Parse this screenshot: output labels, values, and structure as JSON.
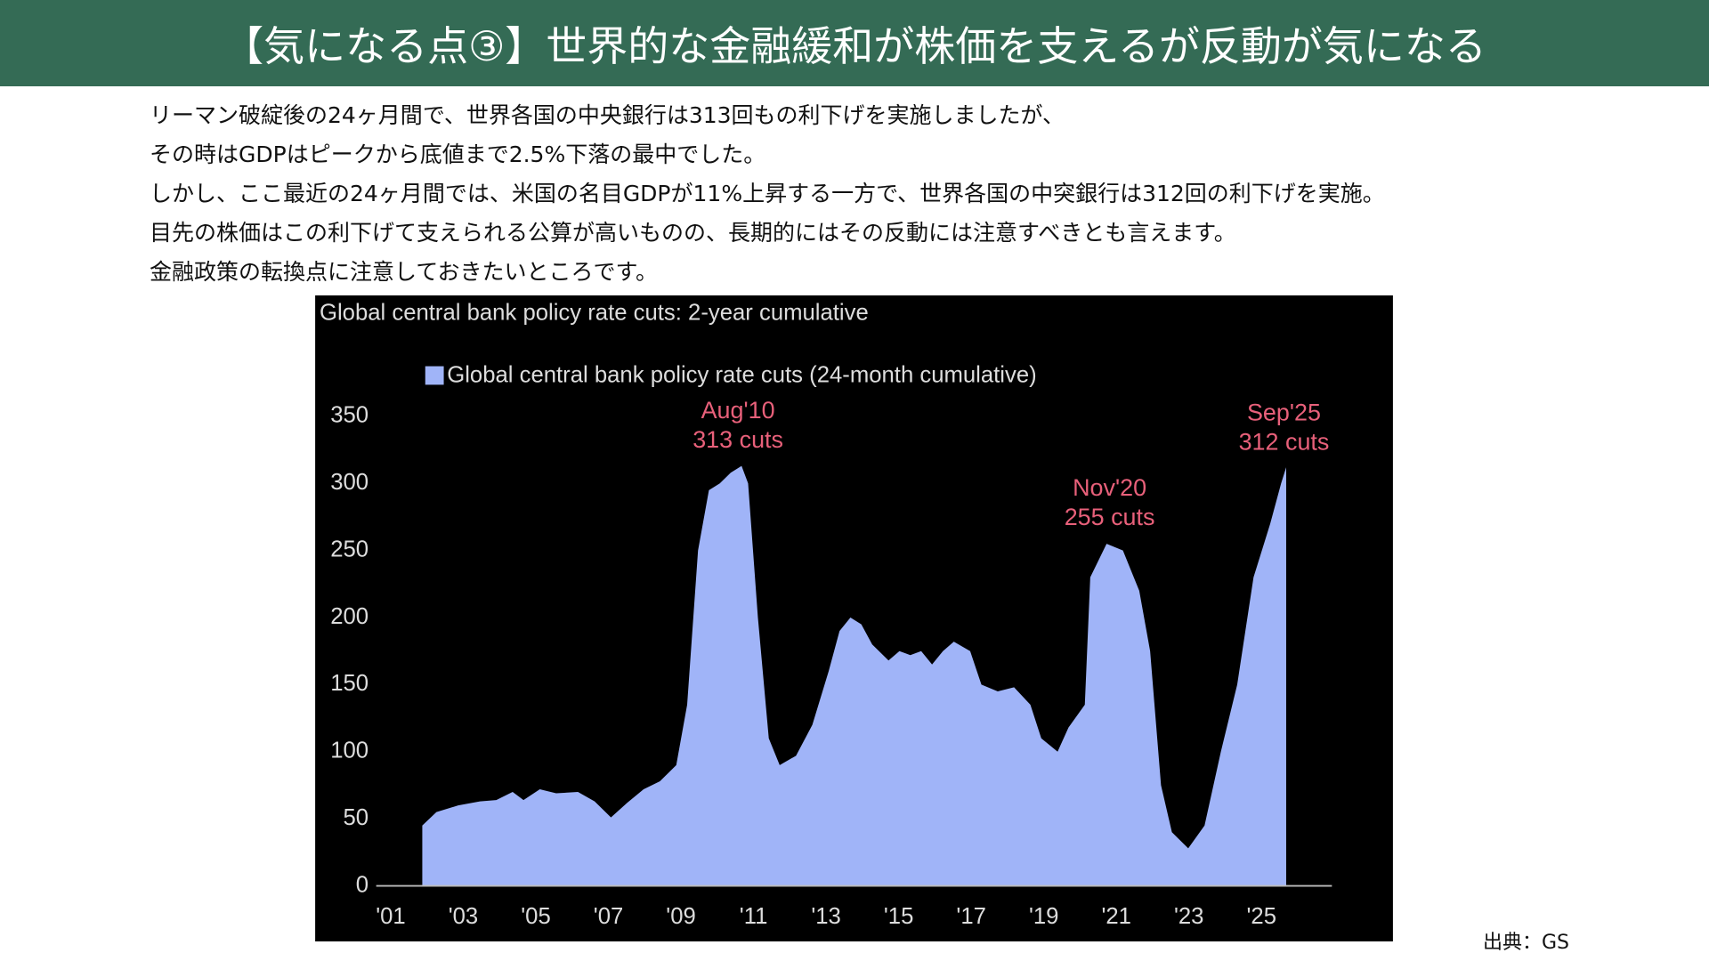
{
  "header": {
    "title": "【気になる点③】世界的な金融緩和が株価を支えるが反動が気になる"
  },
  "body": {
    "lines": [
      "リーマン破綻後の24ヶ月間で、世界各国の中央銀行は313回もの利下げを実施しましたが、",
      "その時はGDPはピークから底値まで2.5%下落の最中でした。",
      "しかし、ここ最近の24ヶ月間では、米国の名目GDPが11%上昇する一方で、世界各国の中突銀行は312回の利下げを実施。",
      "目先の株価はこの利下げて支えられる公算が高いものの、長期的にはその反動には注意すべきとも言えます。",
      "金融政策の転換点に注意しておきたいところです。"
    ]
  },
  "chart_data": {
    "type": "area",
    "title": "Global central bank policy rate cuts: 2-year cumulative",
    "x": [
      2001.87,
      2002.26,
      2002.86,
      2003.46,
      2003.91,
      2004.36,
      2004.66,
      2005.11,
      2005.56,
      2006.16,
      2006.62,
      2007.07,
      2007.52,
      2007.97,
      2008.42,
      2008.87,
      2009.17,
      2009.47,
      2009.77,
      2010.07,
      2010.37,
      2010.67,
      2010.85,
      2011.12,
      2011.42,
      2011.72,
      2012.17,
      2012.62,
      2013.07,
      2013.37,
      2013.67,
      2013.97,
      2014.27,
      2014.72,
      2015.02,
      2015.32,
      2015.62,
      2015.92,
      2016.22,
      2016.52,
      2016.97,
      2017.28,
      2017.73,
      2018.18,
      2018.63,
      2018.93,
      2019.38,
      2019.68,
      2020.13,
      2020.28,
      2020.73,
      2021.18,
      2021.63,
      2021.93,
      2022.23,
      2022.53,
      2022.98,
      2023.43,
      2023.88,
      2024.33,
      2024.78,
      2025.24,
      2025.54,
      2025.68
    ],
    "series": [
      {
        "name": "Global central bank policy rate cuts (24-month cumulative)",
        "color": "#a0b4f8",
        "values": [
          45,
          55,
          60,
          63,
          64,
          70,
          64,
          72,
          69,
          70,
          63,
          51,
          62,
          72,
          78,
          90,
          135,
          250,
          295,
          300,
          308,
          313,
          300,
          200,
          110,
          90,
          97,
          120,
          160,
          190,
          200,
          195,
          180,
          168,
          175,
          172,
          175,
          165,
          175,
          182,
          175,
          150,
          145,
          148,
          135,
          110,
          100,
          118,
          135,
          230,
          255,
          250,
          220,
          175,
          75,
          40,
          28,
          45,
          100,
          150,
          230,
          270,
          300,
          312
        ]
      }
    ],
    "xlim": [
      2000.6,
      2027
    ],
    "xticks": [
      {
        "value": 2001,
        "label": "'01"
      },
      {
        "value": 2003,
        "label": "'03"
      },
      {
        "value": 2005,
        "label": "'05"
      },
      {
        "value": 2007,
        "label": "'07"
      },
      {
        "value": 2009,
        "label": "'09"
      },
      {
        "value": 2011,
        "label": "'11"
      },
      {
        "value": 2013,
        "label": "'13"
      },
      {
        "value": 2015,
        "label": "'15"
      },
      {
        "value": 2017,
        "label": "'17"
      },
      {
        "value": 2019,
        "label": "'19"
      },
      {
        "value": 2021,
        "label": "'21"
      },
      {
        "value": 2023,
        "label": "'23"
      },
      {
        "value": 2025,
        "label": "'25"
      }
    ],
    "ylim": [
      0,
      350
    ],
    "yticks": [
      0,
      50,
      100,
      150,
      200,
      250,
      300,
      350
    ],
    "annotations": [
      [
        "Aug'10",
        "313 cuts"
      ],
      [
        "Nov'20",
        "255 cuts"
      ],
      [
        "Sep'25",
        "312 cuts"
      ]
    ],
    "annotation_color": "#e8607a"
  },
  "source": "出典：GS"
}
